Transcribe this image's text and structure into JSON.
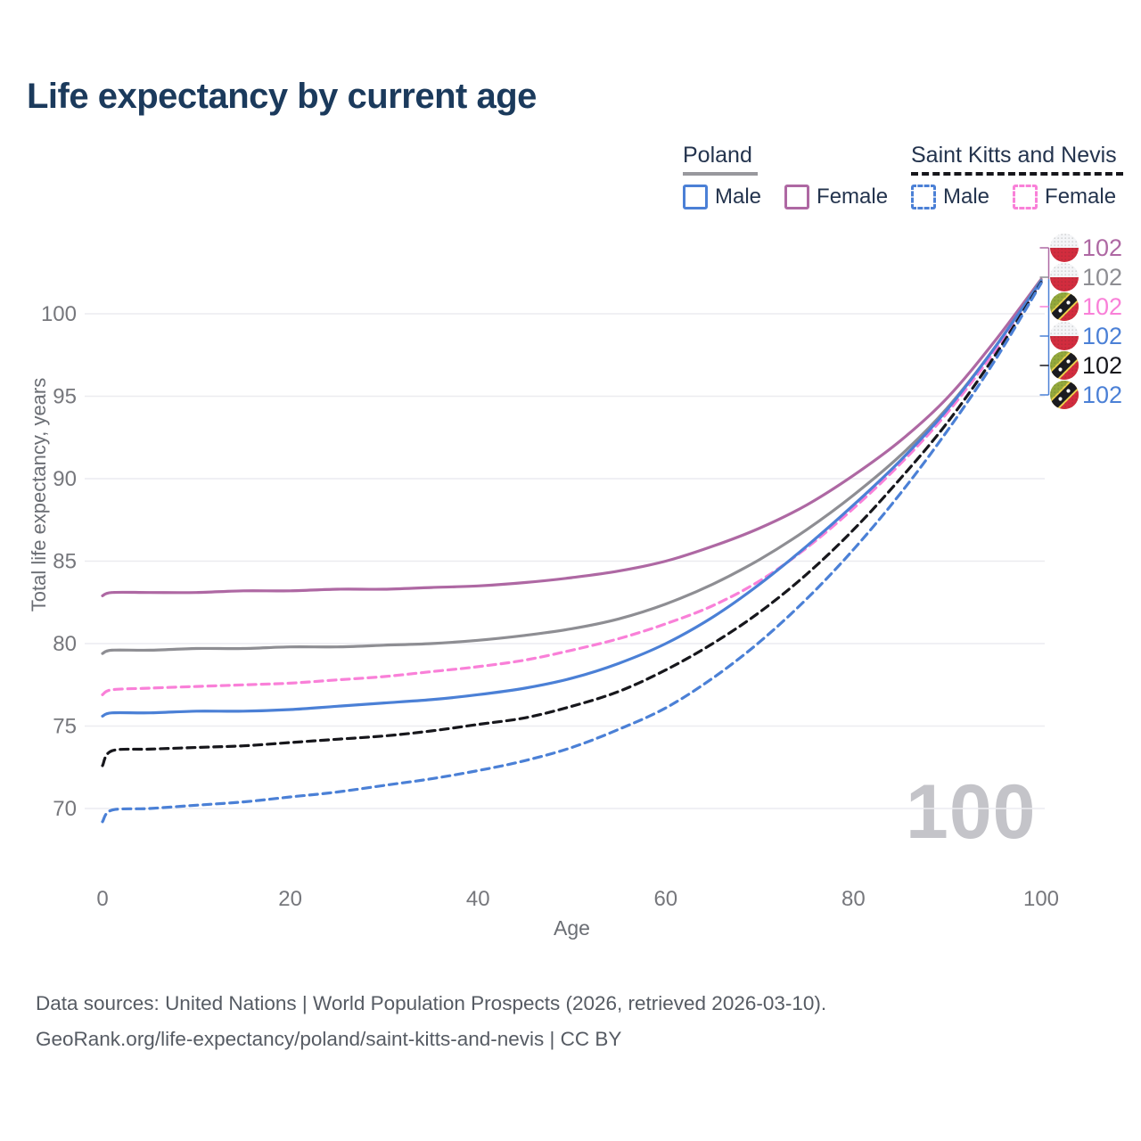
{
  "title": "Life expectancy by current age",
  "watermark": "100",
  "legend": {
    "groups": [
      {
        "label": "Poland",
        "line_style": "solid",
        "line_color": "#98989d",
        "items": [
          {
            "label": "Male",
            "color": "#4b80d6",
            "dashed": false
          },
          {
            "label": "Female",
            "color": "#ae68a3",
            "dashed": false
          }
        ]
      },
      {
        "label": "Saint Kitts and Nevis",
        "line_style": "dashed",
        "line_color": "#16161b",
        "items": [
          {
            "label": "Male",
            "color": "#4b80d6",
            "dashed": true
          },
          {
            "label": "Female",
            "color": "#f980d8",
            "dashed": true
          }
        ]
      }
    ]
  },
  "chart_data": {
    "type": "line",
    "title": "Life expectancy by current age",
    "xlabel": "Age",
    "ylabel": "Total life expectancy, years",
    "xlim": [
      0,
      100
    ],
    "ylim": [
      68,
      103
    ],
    "xticks": [
      0,
      20,
      40,
      60,
      80,
      100
    ],
    "yticks": [
      70,
      75,
      80,
      85,
      90,
      95,
      100
    ],
    "grid": "horizontal",
    "legend_position": "top-right",
    "x": [
      0,
      1,
      5,
      10,
      15,
      20,
      25,
      30,
      35,
      40,
      45,
      50,
      55,
      60,
      65,
      70,
      75,
      80,
      85,
      90,
      95,
      100
    ],
    "series": [
      {
        "name": "Poland Female",
        "country": "Poland",
        "sex": "Female",
        "flag": "poland",
        "color": "#ae68a3",
        "dashed": false,
        "end_label": "102",
        "values": [
          82.9,
          83.1,
          83.1,
          83.1,
          83.2,
          83.2,
          83.3,
          83.3,
          83.4,
          83.5,
          83.7,
          84.0,
          84.4,
          85.0,
          85.9,
          87.0,
          88.4,
          90.2,
          92.3,
          94.9,
          98.3,
          102.1
        ]
      },
      {
        "name": "Poland Both sexes",
        "country": "Poland",
        "sex": "Both",
        "flag": "poland",
        "color": "#8e8e93",
        "dashed": false,
        "end_label": "102",
        "values": [
          79.4,
          79.6,
          79.6,
          79.7,
          79.7,
          79.8,
          79.8,
          79.9,
          80.0,
          80.2,
          80.5,
          80.9,
          81.5,
          82.4,
          83.6,
          85.1,
          86.9,
          89.0,
          91.4,
          94.3,
          97.9,
          102.05
        ]
      },
      {
        "name": "Saint Kitts and Nevis Female",
        "country": "Saint Kitts and Nevis",
        "sex": "Female",
        "flag": "skn",
        "color": "#f980d8",
        "dashed": true,
        "end_label": "102",
        "values": [
          76.9,
          77.2,
          77.3,
          77.4,
          77.5,
          77.6,
          77.8,
          78.0,
          78.3,
          78.6,
          79.0,
          79.6,
          80.3,
          81.2,
          82.3,
          83.8,
          85.8,
          88.2,
          90.9,
          94.0,
          97.7,
          101.95
        ]
      },
      {
        "name": "Poland Male",
        "country": "Poland",
        "sex": "Male",
        "flag": "poland",
        "color": "#4b80d6",
        "dashed": false,
        "end_label": "102",
        "values": [
          75.6,
          75.8,
          75.8,
          75.9,
          75.9,
          76.0,
          76.2,
          76.4,
          76.6,
          76.9,
          77.3,
          77.9,
          78.8,
          80.0,
          81.6,
          83.6,
          85.9,
          88.4,
          91.1,
          94.2,
          97.9,
          102.0
        ]
      },
      {
        "name": "Saint Kitts and Nevis Both sexes",
        "country": "Saint Kitts and Nevis",
        "sex": "Both",
        "flag": "skn",
        "color": "#17171c",
        "dashed": true,
        "end_label": "102",
        "values": [
          72.6,
          73.5,
          73.6,
          73.7,
          73.8,
          74.0,
          74.2,
          74.4,
          74.7,
          75.1,
          75.5,
          76.2,
          77.1,
          78.4,
          80.0,
          81.9,
          84.2,
          86.9,
          90.0,
          93.4,
          97.4,
          101.9
        ]
      },
      {
        "name": "Saint Kitts and Nevis Male",
        "country": "Saint Kitts and Nevis",
        "sex": "Male",
        "flag": "skn",
        "color": "#4b80d6",
        "dashed": true,
        "end_label": "102",
        "values": [
          69.2,
          69.9,
          70.0,
          70.2,
          70.4,
          70.7,
          71.0,
          71.4,
          71.8,
          72.3,
          72.9,
          73.7,
          74.8,
          76.1,
          77.9,
          80.1,
          82.7,
          85.7,
          89.1,
          92.9,
          97.1,
          101.85
        ]
      }
    ]
  },
  "footer": {
    "line1": "Data sources: United Nations | World Population Prospects (2026, retrieved 2026-03-10).",
    "line2": "GeoRank.org/life-expectancy/poland/saint-kitts-and-nevis | CC BY"
  }
}
